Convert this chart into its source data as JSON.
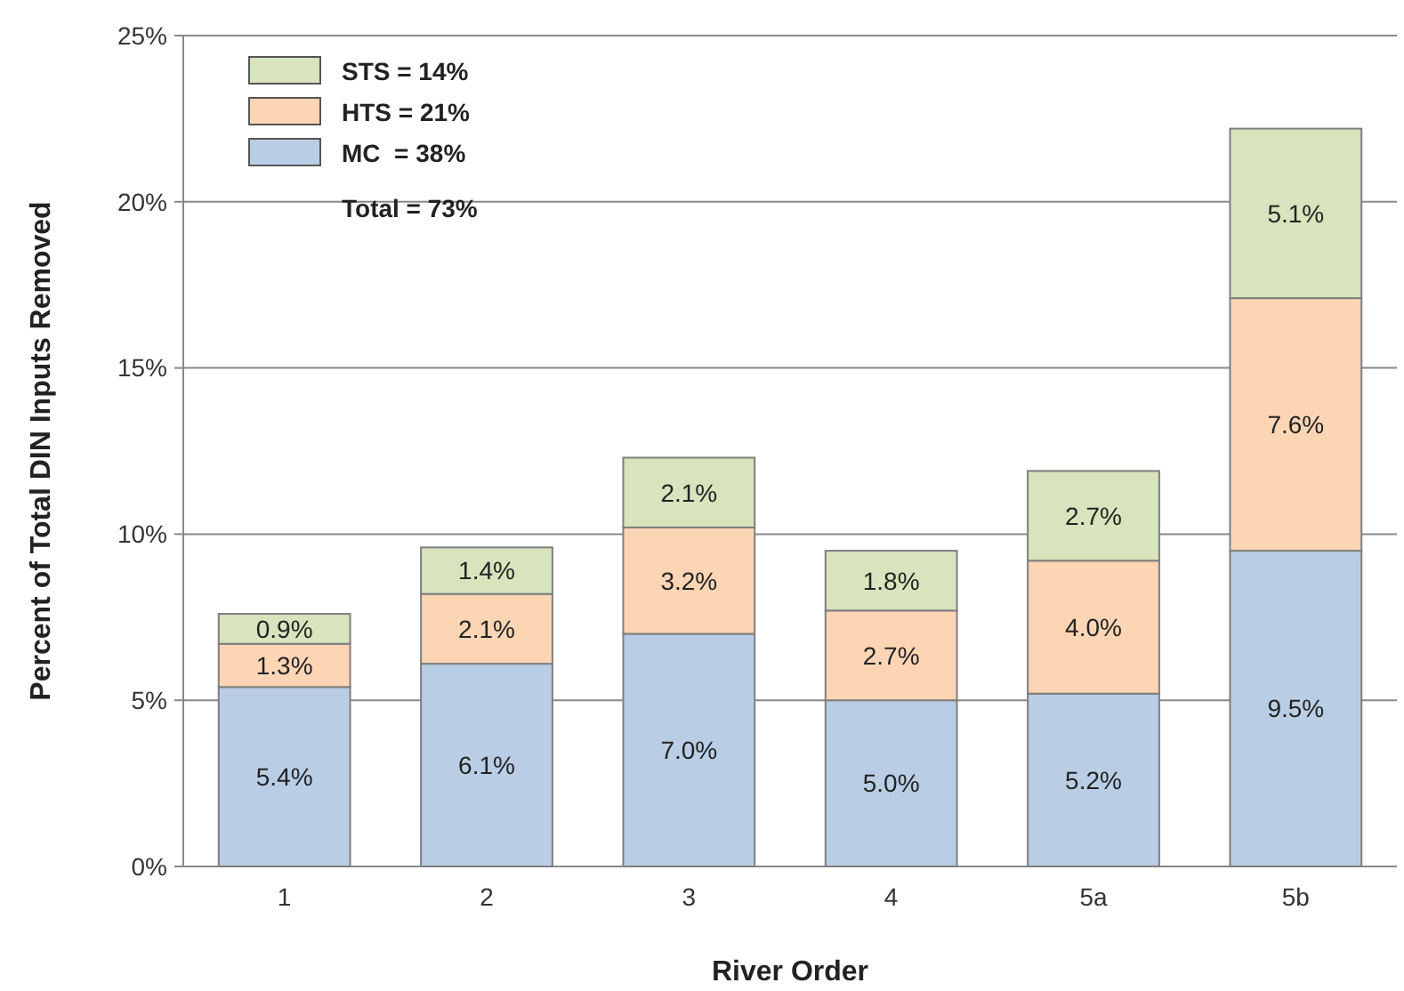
{
  "chart_data": {
    "type": "bar",
    "stacked": true,
    "xlabel": "River Order",
    "ylabel": "Percent of Total DIN Inputs Removed",
    "categories": [
      "1",
      "2",
      "3",
      "4",
      "5a",
      "5b"
    ],
    "series": [
      {
        "name": "MC  = 38%",
        "color": "#b9cde5",
        "values": [
          5.4,
          6.1,
          7.0,
          5.0,
          5.2,
          9.5
        ],
        "value_labels": [
          "5.4%",
          "6.1%",
          "7.0%",
          "5.0%",
          "5.2%",
          "9.5%"
        ]
      },
      {
        "name": "HTS = 21%",
        "color": "#fcd5b5",
        "values": [
          1.3,
          2.1,
          3.2,
          2.7,
          4.0,
          7.6
        ],
        "value_labels": [
          "1.3%",
          "2.1%",
          "3.2%",
          "2.7%",
          "4.0%",
          "7.6%"
        ]
      },
      {
        "name": "STS = 14%",
        "color": "#d7e4bd",
        "values": [
          0.9,
          1.4,
          2.1,
          1.8,
          2.7,
          5.1
        ],
        "value_labels": [
          "0.9%",
          "1.4%",
          "2.1%",
          "1.8%",
          "2.7%",
          "5.1%"
        ]
      }
    ],
    "ylim": [
      0,
      25
    ],
    "yticks": [
      {
        "value": 0,
        "label": "0%"
      },
      {
        "value": 5,
        "label": "5%"
      },
      {
        "value": 10,
        "label": "10%"
      },
      {
        "value": 15,
        "label": "15%"
      },
      {
        "value": 20,
        "label": "20%"
      },
      {
        "value": 25,
        "label": "25%"
      }
    ],
    "grid": "y",
    "legend": "top left",
    "annotations": [
      "Total = 73%"
    ]
  }
}
